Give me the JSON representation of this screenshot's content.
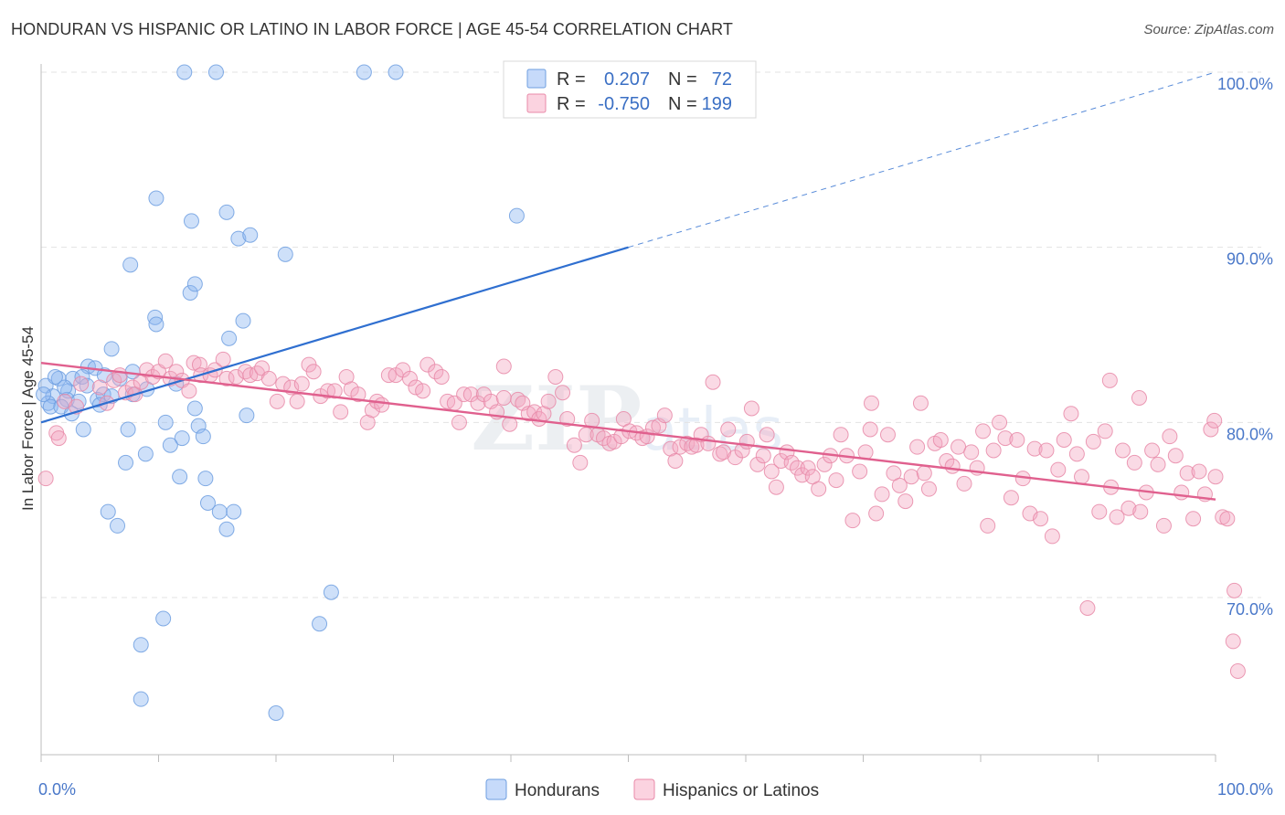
{
  "title": "HONDURAN VS HISPANIC OR LATINO IN LABOR FORCE | AGE 45-54 CORRELATION CHART",
  "source": "Source: ZipAtlas.com",
  "chart_data": {
    "type": "scatter",
    "title": "HONDURAN VS HISPANIC OR LATINO IN LABOR FORCE | AGE 45-54 CORRELATION CHART",
    "xlabel": "",
    "ylabel": "In Labor Force | Age 45-54",
    "xlim": [
      0,
      100
    ],
    "ylim": [
      62,
      101
    ],
    "x_tick_labels": [
      "0.0%",
      "100.0%"
    ],
    "y_ticks": [
      70,
      80,
      90,
      100
    ],
    "y_tick_labels": [
      "70.0%",
      "80.0%",
      "90.0%",
      "100.0%"
    ],
    "grid": true,
    "watermark": "ZIPatlas",
    "legend": {
      "placement": "top-center",
      "entries": [
        {
          "series": "Hondurans",
          "r_label": "R =",
          "r_value": "0.207",
          "n_label": "N =",
          "n_value": "72",
          "color": "#8ab4f0"
        },
        {
          "series": "Hispanics or Latinos",
          "r_label": "R =",
          "r_value": "-0.750",
          "n_label": "N =",
          "n_value": "199",
          "color": "#f4a7c0"
        }
      ]
    },
    "series": [
      {
        "name": "Hondurans",
        "color": "#8ab4f0",
        "stroke": "#6f9fe0",
        "trend": {
          "x0": 0,
          "y0": 80.0,
          "x1": 50,
          "y1": 90.0,
          "dash_to_x": 100,
          "dash_to_y": 100.0,
          "color": "#2f6fd0"
        },
        "points": [
          [
            12.2,
            100
          ],
          [
            14.9,
            100
          ],
          [
            27.5,
            100
          ],
          [
            30.2,
            100
          ],
          [
            9.8,
            92.8
          ],
          [
            12.8,
            91.5
          ],
          [
            15.8,
            92.0
          ],
          [
            16.8,
            90.5
          ],
          [
            17.8,
            90.7
          ],
          [
            20.8,
            89.6
          ],
          [
            40.5,
            91.8
          ],
          [
            7.6,
            89.0
          ],
          [
            12.7,
            87.4
          ],
          [
            13.1,
            87.9
          ],
          [
            9.7,
            86.0
          ],
          [
            9.8,
            85.6
          ],
          [
            17.2,
            85.8
          ],
          [
            16.0,
            84.8
          ],
          [
            6.0,
            84.2
          ],
          [
            0.4,
            82.1
          ],
          [
            1.5,
            82.5
          ],
          [
            2.7,
            82.5
          ],
          [
            4.0,
            83.2
          ],
          [
            4.6,
            83.1
          ],
          [
            3.5,
            82.6
          ],
          [
            7.8,
            82.9
          ],
          [
            6.7,
            82.5
          ],
          [
            3.9,
            82.1
          ],
          [
            2.3,
            81.8
          ],
          [
            1.0,
            81.5
          ],
          [
            2.2,
            81.3
          ],
          [
            3.2,
            81.2
          ],
          [
            4.8,
            81.3
          ],
          [
            5.3,
            81.6
          ],
          [
            6.0,
            81.5
          ],
          [
            0.6,
            81.1
          ],
          [
            0.8,
            80.9
          ],
          [
            1.7,
            80.9
          ],
          [
            5.0,
            81.0
          ],
          [
            7.8,
            81.6
          ],
          [
            11.5,
            82.2
          ],
          [
            2.6,
            80.5
          ],
          [
            13.1,
            80.8
          ],
          [
            10.6,
            80.0
          ],
          [
            13.4,
            79.8
          ],
          [
            17.5,
            80.4
          ],
          [
            7.4,
            79.6
          ],
          [
            3.6,
            79.6
          ],
          [
            12.0,
            79.1
          ],
          [
            13.8,
            79.2
          ],
          [
            11.0,
            78.7
          ],
          [
            8.9,
            78.2
          ],
          [
            7.2,
            77.7
          ],
          [
            11.8,
            76.9
          ],
          [
            14.0,
            76.8
          ],
          [
            14.2,
            75.4
          ],
          [
            15.2,
            74.9
          ],
          [
            16.4,
            74.9
          ],
          [
            5.7,
            74.9
          ],
          [
            6.5,
            74.1
          ],
          [
            15.8,
            73.9
          ],
          [
            24.7,
            70.3
          ],
          [
            10.4,
            68.8
          ],
          [
            23.7,
            68.5
          ],
          [
            8.5,
            67.3
          ],
          [
            8.5,
            64.2
          ],
          [
            20.0,
            63.4
          ],
          [
            2.0,
            82.0
          ],
          [
            1.2,
            82.6
          ],
          [
            5.4,
            82.7
          ],
          [
            9.0,
            81.9
          ],
          [
            0.2,
            81.6
          ]
        ]
      },
      {
        "name": "Hispanics or Latinos",
        "color": "#f4a7c0",
        "stroke": "#e88aa8",
        "trend": {
          "x0": 0,
          "y0": 83.4,
          "x1": 100,
          "y1": 75.6,
          "color": "#e0608e"
        },
        "points": [
          [
            0.4,
            76.8
          ],
          [
            1.3,
            79.4
          ],
          [
            1.5,
            79.1
          ],
          [
            2.0,
            81.2
          ],
          [
            3.0,
            80.9
          ],
          [
            3.4,
            82.2
          ],
          [
            5.0,
            82.0
          ],
          [
            5.6,
            81.1
          ],
          [
            6.2,
            82.4
          ],
          [
            6.7,
            82.7
          ],
          [
            7.2,
            81.7
          ],
          [
            7.8,
            82.0
          ],
          [
            8.0,
            81.6
          ],
          [
            8.5,
            82.3
          ],
          [
            9.0,
            83.0
          ],
          [
            9.5,
            82.6
          ],
          [
            10.0,
            82.9
          ],
          [
            10.6,
            83.5
          ],
          [
            11.0,
            82.5
          ],
          [
            11.5,
            82.9
          ],
          [
            12.0,
            82.4
          ],
          [
            12.6,
            81.8
          ],
          [
            13.0,
            83.4
          ],
          [
            13.5,
            83.3
          ],
          [
            13.6,
            82.7
          ],
          [
            14.4,
            82.7
          ],
          [
            14.8,
            83.0
          ],
          [
            15.5,
            83.6
          ],
          [
            15.8,
            82.5
          ],
          [
            16.6,
            82.6
          ],
          [
            17.4,
            82.9
          ],
          [
            17.8,
            82.7
          ],
          [
            18.4,
            82.8
          ],
          [
            18.8,
            83.1
          ],
          [
            19.4,
            82.5
          ],
          [
            20.1,
            81.2
          ],
          [
            20.6,
            82.2
          ],
          [
            21.3,
            82.0
          ],
          [
            21.8,
            81.2
          ],
          [
            22.2,
            82.2
          ],
          [
            22.8,
            83.3
          ],
          [
            23.2,
            82.9
          ],
          [
            23.8,
            81.5
          ],
          [
            24.4,
            81.8
          ],
          [
            25.0,
            81.8
          ],
          [
            25.5,
            80.6
          ],
          [
            26.0,
            82.6
          ],
          [
            26.4,
            81.9
          ],
          [
            27.0,
            81.6
          ],
          [
            27.8,
            80.0
          ],
          [
            28.2,
            80.7
          ],
          [
            28.6,
            81.2
          ],
          [
            29.0,
            81.0
          ],
          [
            29.6,
            82.7
          ],
          [
            30.2,
            82.7
          ],
          [
            30.8,
            83.0
          ],
          [
            31.4,
            82.5
          ],
          [
            31.9,
            82.0
          ],
          [
            32.5,
            81.8
          ],
          [
            32.9,
            83.3
          ],
          [
            33.6,
            82.9
          ],
          [
            34.1,
            82.6
          ],
          [
            34.6,
            81.2
          ],
          [
            35.2,
            81.1
          ],
          [
            35.6,
            80.0
          ],
          [
            36.0,
            81.6
          ],
          [
            36.6,
            81.6
          ],
          [
            37.2,
            81.1
          ],
          [
            37.7,
            81.6
          ],
          [
            38.3,
            81.2
          ],
          [
            38.8,
            80.6
          ],
          [
            39.4,
            81.4
          ],
          [
            39.4,
            83.2
          ],
          [
            39.9,
            79.9
          ],
          [
            40.6,
            81.3
          ],
          [
            41.0,
            81.1
          ],
          [
            41.5,
            80.5
          ],
          [
            42.0,
            80.6
          ],
          [
            42.4,
            80.2
          ],
          [
            42.8,
            80.5
          ],
          [
            43.2,
            81.2
          ],
          [
            43.8,
            82.6
          ],
          [
            44.4,
            81.7
          ],
          [
            44.8,
            80.2
          ],
          [
            45.4,
            78.7
          ],
          [
            45.9,
            77.7
          ],
          [
            46.4,
            79.3
          ],
          [
            46.9,
            80.1
          ],
          [
            47.4,
            79.3
          ],
          [
            47.9,
            79.1
          ],
          [
            48.4,
            78.8
          ],
          [
            48.8,
            78.9
          ],
          [
            49.4,
            79.2
          ],
          [
            49.6,
            80.2
          ],
          [
            50.1,
            79.5
          ],
          [
            50.7,
            79.4
          ],
          [
            51.2,
            79.1
          ],
          [
            51.6,
            79.2
          ],
          [
            52.1,
            79.7
          ],
          [
            52.6,
            79.8
          ],
          [
            53.1,
            80.4
          ],
          [
            53.6,
            78.5
          ],
          [
            54.0,
            77.8
          ],
          [
            54.4,
            78.6
          ],
          [
            55.0,
            78.8
          ],
          [
            55.4,
            78.6
          ],
          [
            55.8,
            78.7
          ],
          [
            56.2,
            79.3
          ],
          [
            56.8,
            78.8
          ],
          [
            57.2,
            82.3
          ],
          [
            57.8,
            78.2
          ],
          [
            58.1,
            78.3
          ],
          [
            58.5,
            79.6
          ],
          [
            59.1,
            78.0
          ],
          [
            59.7,
            78.4
          ],
          [
            60.1,
            78.9
          ],
          [
            60.5,
            80.8
          ],
          [
            61.0,
            77.6
          ],
          [
            61.5,
            78.1
          ],
          [
            61.8,
            79.3
          ],
          [
            62.2,
            77.2
          ],
          [
            62.6,
            76.3
          ],
          [
            63.0,
            77.8
          ],
          [
            63.5,
            78.3
          ],
          [
            63.9,
            77.7
          ],
          [
            64.4,
            77.4
          ],
          [
            64.8,
            77.0
          ],
          [
            65.3,
            77.4
          ],
          [
            65.7,
            76.9
          ],
          [
            66.2,
            76.2
          ],
          [
            66.7,
            77.6
          ],
          [
            67.2,
            78.1
          ],
          [
            67.7,
            76.7
          ],
          [
            68.1,
            79.3
          ],
          [
            68.6,
            78.1
          ],
          [
            69.1,
            74.4
          ],
          [
            69.7,
            77.2
          ],
          [
            70.2,
            78.3
          ],
          [
            70.6,
            79.6
          ],
          [
            71.1,
            74.8
          ],
          [
            71.6,
            75.9
          ],
          [
            72.1,
            79.3
          ],
          [
            72.6,
            77.1
          ],
          [
            73.1,
            76.4
          ],
          [
            73.6,
            75.5
          ],
          [
            74.1,
            76.9
          ],
          [
            74.6,
            78.6
          ],
          [
            75.2,
            77.1
          ],
          [
            75.6,
            76.2
          ],
          [
            76.1,
            78.8
          ],
          [
            76.6,
            79.0
          ],
          [
            77.1,
            77.8
          ],
          [
            77.6,
            77.5
          ],
          [
            78.1,
            78.6
          ],
          [
            78.6,
            76.5
          ],
          [
            79.2,
            78.3
          ],
          [
            79.7,
            77.4
          ],
          [
            80.2,
            79.5
          ],
          [
            80.6,
            74.1
          ],
          [
            81.1,
            78.4
          ],
          [
            81.6,
            80.0
          ],
          [
            82.1,
            79.1
          ],
          [
            82.6,
            75.7
          ],
          [
            83.1,
            79.0
          ],
          [
            83.6,
            76.8
          ],
          [
            84.2,
            74.8
          ],
          [
            84.6,
            78.5
          ],
          [
            85.1,
            74.5
          ],
          [
            85.6,
            78.4
          ],
          [
            86.1,
            73.5
          ],
          [
            86.6,
            77.3
          ],
          [
            87.1,
            79.0
          ],
          [
            87.7,
            80.5
          ],
          [
            88.2,
            78.2
          ],
          [
            88.6,
            76.9
          ],
          [
            89.1,
            69.4
          ],
          [
            89.6,
            78.9
          ],
          [
            90.1,
            74.9
          ],
          [
            90.6,
            79.5
          ],
          [
            91.1,
            76.3
          ],
          [
            91.6,
            74.6
          ],
          [
            92.1,
            78.4
          ],
          [
            92.6,
            75.1
          ],
          [
            93.1,
            77.7
          ],
          [
            93.6,
            74.9
          ],
          [
            94.1,
            76.0
          ],
          [
            94.6,
            78.4
          ],
          [
            95.1,
            77.6
          ],
          [
            95.6,
            74.1
          ],
          [
            96.1,
            79.2
          ],
          [
            96.6,
            78.1
          ],
          [
            97.1,
            76.0
          ],
          [
            97.6,
            77.1
          ],
          [
            98.1,
            74.5
          ],
          [
            98.6,
            77.2
          ],
          [
            99.1,
            75.9
          ],
          [
            99.6,
            79.6
          ],
          [
            100.0,
            76.9
          ],
          [
            100.6,
            74.6
          ],
          [
            101.0,
            74.5
          ],
          [
            101.5,
            67.5
          ],
          [
            101.9,
            65.8
          ],
          [
            101.6,
            70.4
          ],
          [
            91.0,
            82.4
          ],
          [
            93.5,
            81.4
          ],
          [
            70.7,
            81.1
          ],
          [
            74.9,
            81.1
          ],
          [
            99.9,
            80.1
          ]
        ]
      }
    ]
  },
  "bottom_legend": [
    {
      "label": "Hondurans",
      "color": "#8ab4f0"
    },
    {
      "label": "Hispanics or Latinos",
      "color": "#f4a7c0"
    }
  ]
}
